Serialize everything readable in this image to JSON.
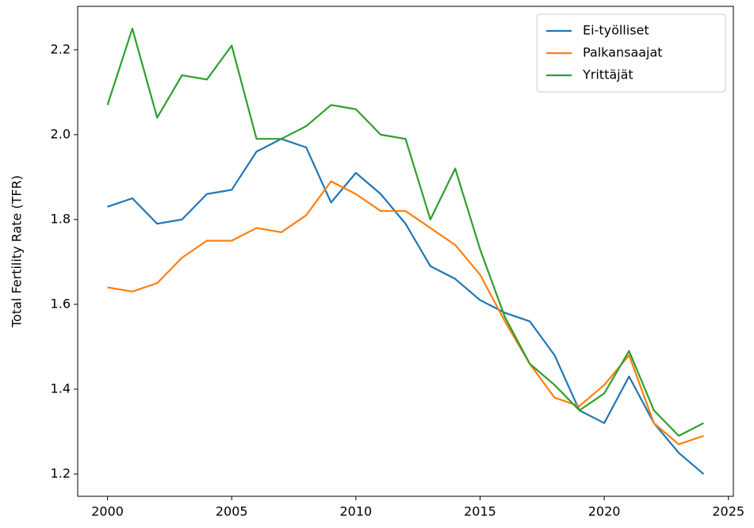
{
  "chart_data": {
    "type": "line",
    "ylabel": "Total Fertility Rate (TFR)",
    "x": [
      2000,
      2001,
      2002,
      2003,
      2004,
      2005,
      2006,
      2007,
      2008,
      2009,
      2010,
      2011,
      2012,
      2013,
      2014,
      2015,
      2016,
      2017,
      2018,
      2019,
      2020,
      2021,
      2022,
      2023,
      2024
    ],
    "series": [
      {
        "name": "Ei-työlliset",
        "color": "#1f77b4",
        "values": [
          1.83,
          1.85,
          1.79,
          1.8,
          1.86,
          1.87,
          1.96,
          1.99,
          1.97,
          1.84,
          1.91,
          1.86,
          1.79,
          1.69,
          1.66,
          1.61,
          1.58,
          1.56,
          1.48,
          1.35,
          1.32,
          1.43,
          1.32,
          1.25,
          1.2
        ]
      },
      {
        "name": "Palkansaajat",
        "color": "#ff7f0e",
        "values": [
          1.64,
          1.63,
          1.65,
          1.71,
          1.75,
          1.75,
          1.78,
          1.77,
          1.81,
          1.89,
          1.86,
          1.82,
          1.82,
          1.78,
          1.74,
          1.67,
          1.56,
          1.46,
          1.38,
          1.36,
          1.41,
          1.48,
          1.32,
          1.27,
          1.29
        ]
      },
      {
        "name": "Yrittäjät",
        "color": "#2ca02c",
        "values": [
          2.07,
          2.25,
          2.04,
          2.14,
          2.13,
          2.21,
          1.99,
          1.99,
          2.02,
          2.07,
          2.06,
          2.0,
          1.99,
          1.8,
          1.92,
          1.73,
          1.57,
          1.46,
          1.41,
          1.35,
          1.39,
          1.49,
          1.35,
          1.29,
          1.32
        ]
      }
    ],
    "xlim": [
      1998.8,
      2025.2
    ],
    "xticks": [
      2000,
      2005,
      2010,
      2015,
      2020,
      2025
    ],
    "ylim": [
      1.1475,
      2.3025
    ],
    "yticks": [
      1.2,
      1.4,
      1.6,
      1.8,
      {
        "value": 2,
        "label": "2.0"
      },
      2.2
    ],
    "legend": "upper right"
  }
}
